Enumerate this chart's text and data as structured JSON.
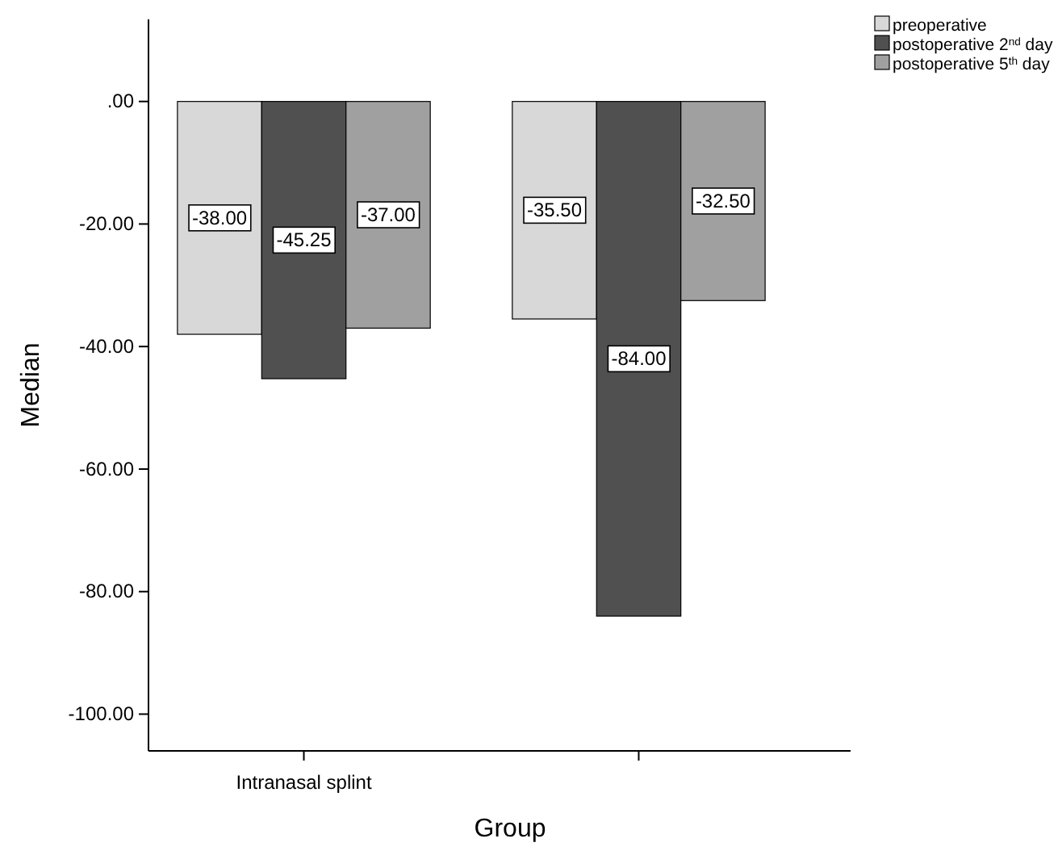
{
  "chart_data": {
    "type": "bar",
    "xlabel": "Group",
    "ylabel": "Median",
    "categories": [
      "Intranasal splint",
      null
    ],
    "series": [
      {
        "name": "preoperative",
        "color": "#d8d8d8",
        "values": [
          -38.0,
          -35.5
        ],
        "value_labels": [
          "-38.00",
          "-35.50"
        ]
      },
      {
        "name": "postoperative 2$^{nd}$ day",
        "color": "#505050",
        "values": [
          -45.25,
          -84.0
        ],
        "value_labels": [
          "-45.25",
          "-84.00"
        ]
      },
      {
        "name": "postoperative 5$^{th}$ day",
        "color": "#a0a0a0",
        "values": [
          -37.0,
          -32.5
        ],
        "value_labels": [
          "-37.00",
          "-32.50"
        ]
      }
    ],
    "ylim": [
      -106,
      13.4
    ],
    "yticks": [
      {
        "value": 0,
        "label": ".00"
      },
      {
        "value": -20,
        "label": "-20.00"
      },
      {
        "value": -40,
        "label": "-40.00"
      },
      {
        "value": -60,
        "label": "-60.00"
      },
      {
        "value": -80,
        "label": "-80.00"
      },
      {
        "value": -100,
        "label": "-100.00"
      }
    ],
    "legend": "top right"
  }
}
